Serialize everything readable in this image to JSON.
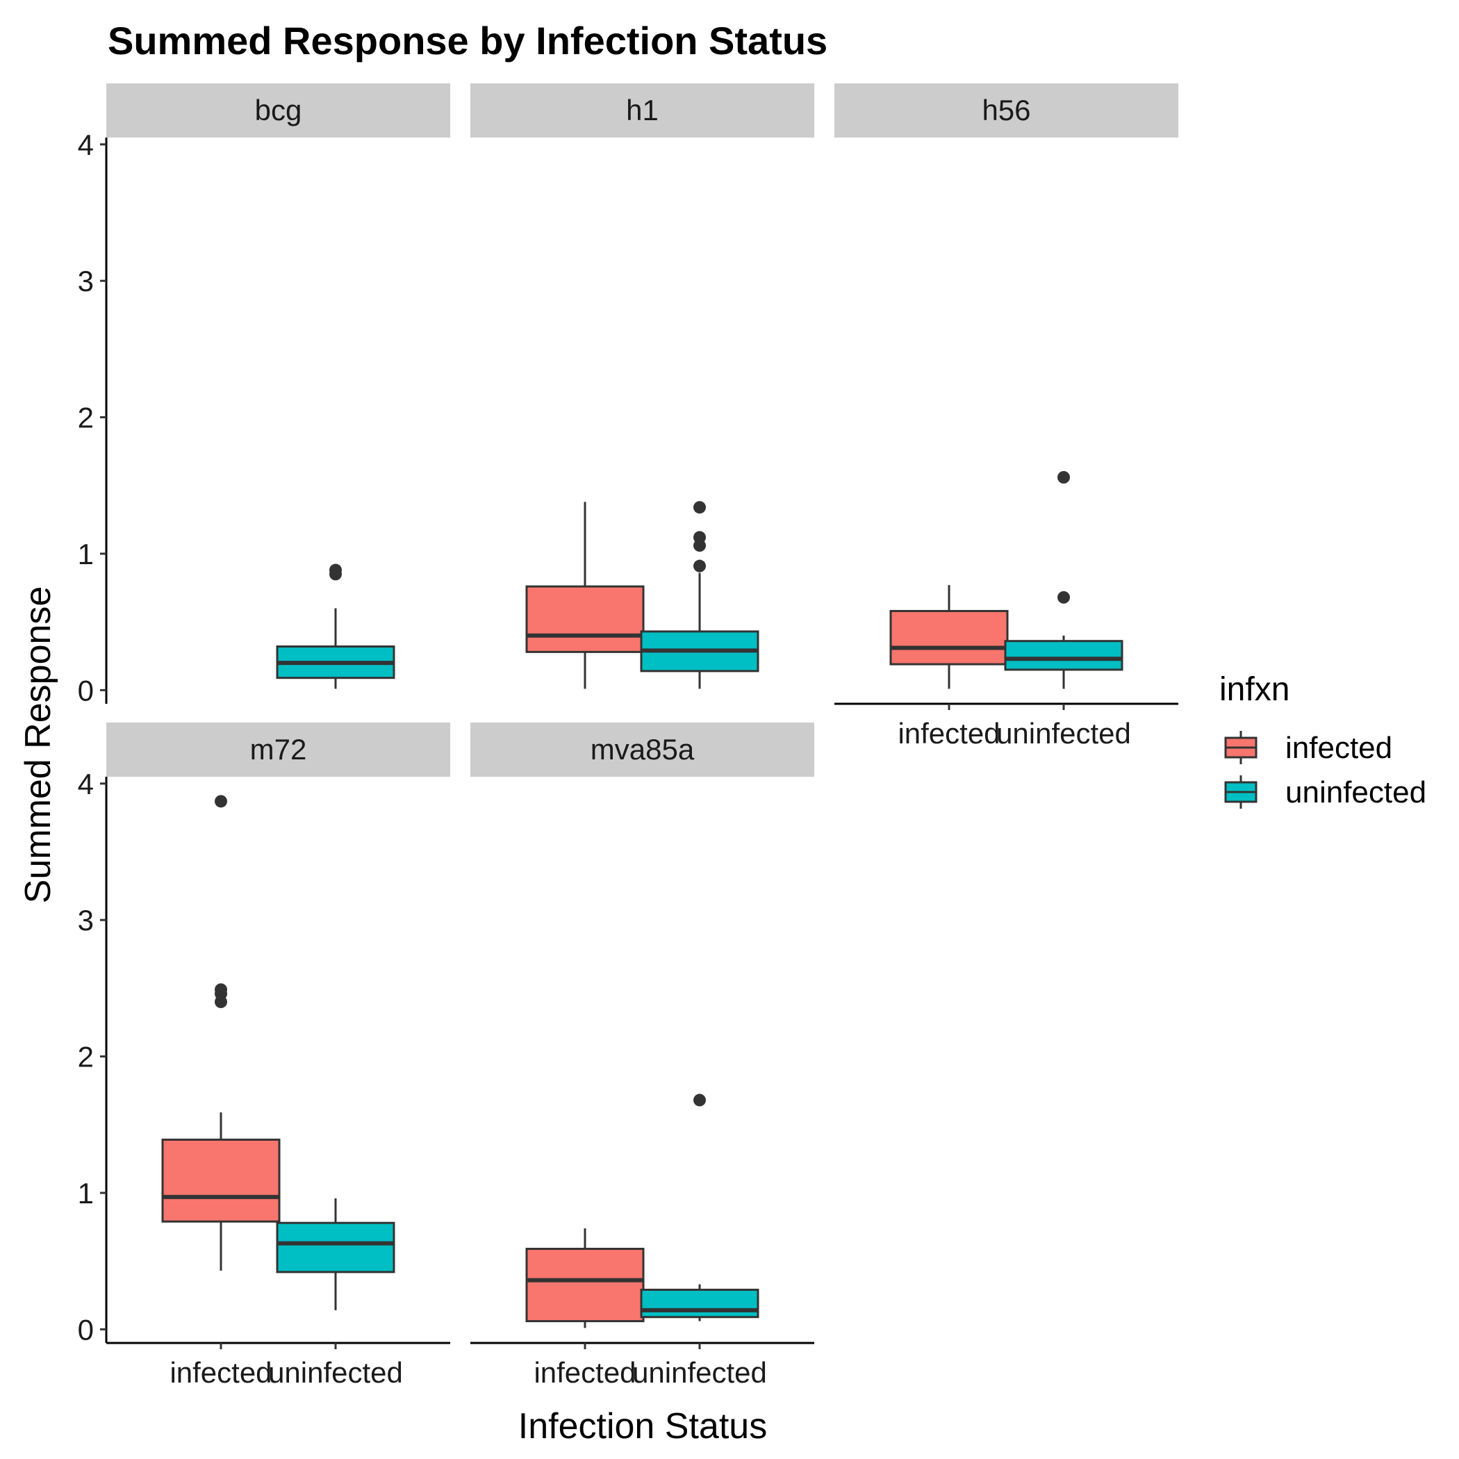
{
  "chart_data": {
    "type": "boxplot",
    "title": "Summed Response by Infection Status",
    "xlabel": "Infection Status",
    "ylabel": "Summed Response",
    "ylim": [
      -0.1,
      4.05
    ],
    "yticks": [
      0,
      1,
      2,
      3,
      4
    ],
    "categories": [
      "infected",
      "uninfected"
    ],
    "facets": [
      {
        "name": "bcg",
        "boxes": [
          {
            "group": "uninfected",
            "min": 0.01,
            "q1": 0.09,
            "median": 0.2,
            "q3": 0.32,
            "max": 0.6,
            "outliers": [
              0.85,
              0.88
            ]
          }
        ]
      },
      {
        "name": "h1",
        "boxes": [
          {
            "group": "infected",
            "min": 0.01,
            "q1": 0.28,
            "median": 0.4,
            "q3": 0.76,
            "max": 1.38,
            "outliers": []
          },
          {
            "group": "uninfected",
            "min": 0.01,
            "q1": 0.14,
            "median": 0.29,
            "q3": 0.43,
            "max": 0.86,
            "outliers": [
              0.91,
              1.06,
              1.12,
              1.34
            ]
          }
        ]
      },
      {
        "name": "h56",
        "boxes": [
          {
            "group": "infected",
            "min": 0.01,
            "q1": 0.19,
            "median": 0.31,
            "q3": 0.58,
            "max": 0.77,
            "outliers": []
          },
          {
            "group": "uninfected",
            "min": 0.01,
            "q1": 0.15,
            "median": 0.23,
            "q3": 0.36,
            "max": 0.4,
            "outliers": [
              0.68,
              1.56
            ]
          }
        ]
      },
      {
        "name": "m72",
        "boxes": [
          {
            "group": "infected",
            "min": 0.43,
            "q1": 0.79,
            "median": 0.97,
            "q3": 1.39,
            "max": 1.59,
            "outliers": [
              2.4,
              2.46,
              2.49,
              3.87
            ]
          },
          {
            "group": "uninfected",
            "min": 0.14,
            "q1": 0.42,
            "median": 0.63,
            "q3": 0.78,
            "max": 0.96,
            "outliers": []
          }
        ]
      },
      {
        "name": "mva85a",
        "boxes": [
          {
            "group": "infected",
            "min": 0.01,
            "q1": 0.06,
            "median": 0.36,
            "q3": 0.59,
            "max": 0.74,
            "outliers": []
          },
          {
            "group": "uninfected",
            "min": 0.06,
            "q1": 0.09,
            "median": 0.14,
            "q3": 0.29,
            "max": 0.33,
            "outliers": [
              1.68
            ]
          }
        ]
      }
    ],
    "legend": {
      "title": "infxn",
      "position": "right",
      "items": [
        {
          "label": "infected",
          "color": "#F8766D"
        },
        {
          "label": "uninfected",
          "color": "#00BFC4"
        }
      ]
    },
    "box_outline_color": "#333333"
  }
}
